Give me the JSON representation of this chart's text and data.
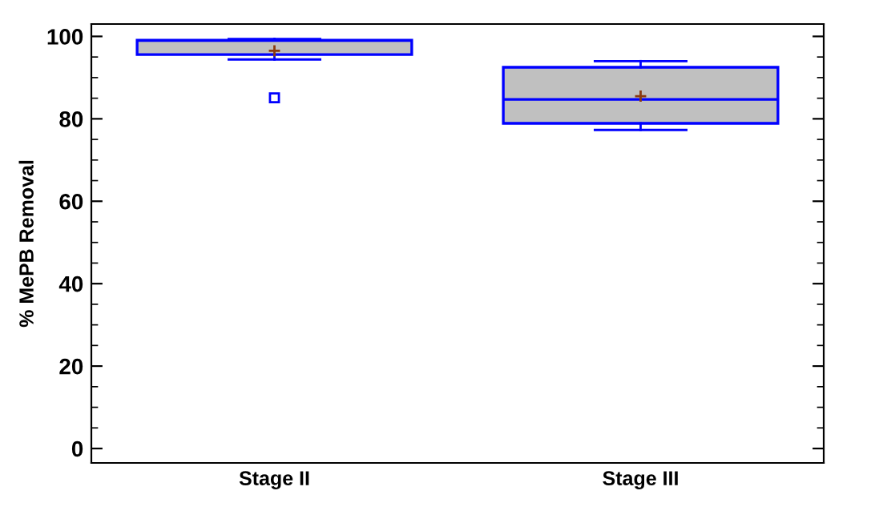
{
  "chart_data": {
    "type": "box",
    "ylabel": "% MePB Removal",
    "categories": [
      "Stage II",
      "Stage III"
    ],
    "boxes": [
      {
        "low": 94.4,
        "q1": 95.6,
        "median": 99.0,
        "q3": 99.1,
        "high": 99.4,
        "mean": 96.5,
        "outliers": [
          85.1
        ]
      },
      {
        "low": 77.3,
        "q1": 78.9,
        "median": 84.7,
        "q3": 92.5,
        "high": 94.0,
        "mean": 85.5
      }
    ],
    "color": "#c0c0c0",
    "ylim": [
      -3.5,
      103
    ],
    "yticks": [
      0,
      20,
      40,
      60,
      80,
      100
    ],
    "grid": false
  }
}
